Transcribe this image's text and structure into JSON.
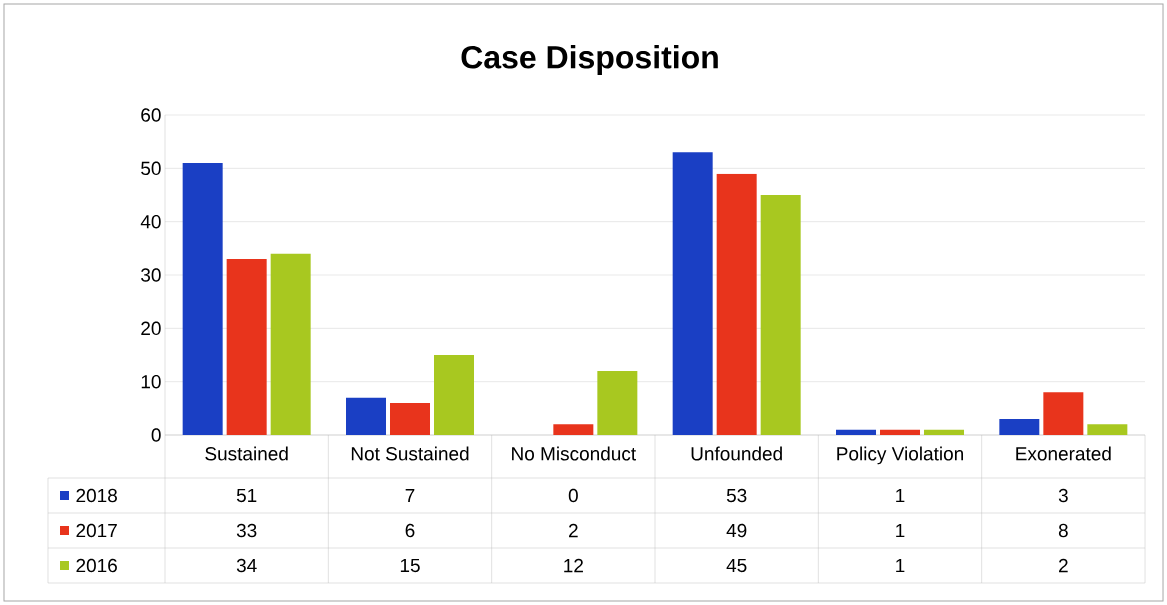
{
  "chart_data": {
    "type": "bar",
    "title": "Case Disposition",
    "categories": [
      "Sustained",
      "Not Sustained",
      "No Misconduct",
      "Unfounded",
      "Policy Violation",
      "Exonerated"
    ],
    "series": [
      {
        "name": "2018",
        "color": "#1a3fc4",
        "values": [
          51,
          7,
          0,
          53,
          1,
          3
        ]
      },
      {
        "name": "2017",
        "color": "#e8341c",
        "values": [
          33,
          6,
          2,
          49,
          1,
          8
        ]
      },
      {
        "name": "2016",
        "color": "#a8c820",
        "values": [
          34,
          15,
          12,
          45,
          1,
          2
        ]
      }
    ],
    "ylim": [
      0,
      60
    ],
    "yticks": [
      0,
      10,
      20,
      30,
      40,
      50,
      60
    ],
    "grid": "y",
    "legend": "bottom",
    "data_labels": true
  }
}
